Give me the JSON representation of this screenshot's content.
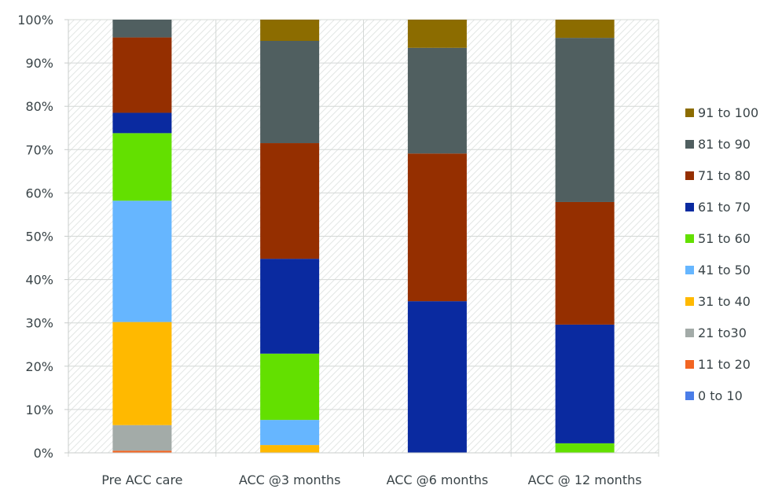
{
  "chart_data": {
    "type": "bar",
    "stacked": true,
    "normalized": true,
    "categories": [
      "Pre ACC care",
      "ACC @3 months",
      "ACC @6 months",
      "ACC @ 12 months"
    ],
    "ylim": [
      0,
      100
    ],
    "yticks": [
      "0%",
      "10%",
      "20%",
      "30%",
      "40%",
      "50%",
      "60%",
      "70%",
      "80%",
      "90%",
      "100%"
    ],
    "grid": true,
    "legend_position": "right",
    "series": [
      {
        "name": "0 to 10",
        "color": "#4a7de8",
        "values": [
          0,
          0,
          0,
          0
        ]
      },
      {
        "name": "11 to  20",
        "color": "#f26522",
        "values": [
          0.5,
          0,
          0,
          0
        ]
      },
      {
        "name": "21 to30",
        "color": "#a3aba8",
        "values": [
          5.9,
          0,
          0,
          0
        ]
      },
      {
        "name": "31 to 40",
        "color": "#ffb900",
        "values": [
          23.8,
          1.8,
          0,
          0
        ]
      },
      {
        "name": "41 to 50",
        "color": "#66b6ff",
        "values": [
          28.0,
          5.8,
          0,
          0
        ]
      },
      {
        "name": "51 to 60",
        "color": "#63e000",
        "values": [
          15.6,
          15.3,
          0,
          2.2
        ]
      },
      {
        "name": "61 to 70",
        "color": "#0a2aa0",
        "values": [
          4.7,
          21.9,
          35.0,
          27.4
        ]
      },
      {
        "name": "71 to 80",
        "color": "#952f00",
        "values": [
          17.4,
          26.7,
          34.1,
          28.3
        ]
      },
      {
        "name": "81 to 90",
        "color": "#505f60",
        "values": [
          4.1,
          23.6,
          24.4,
          37.9
        ]
      },
      {
        "name": "91 to 100",
        "color": "#8c6c00",
        "values": [
          0,
          4.9,
          6.5,
          4.2
        ]
      }
    ]
  }
}
